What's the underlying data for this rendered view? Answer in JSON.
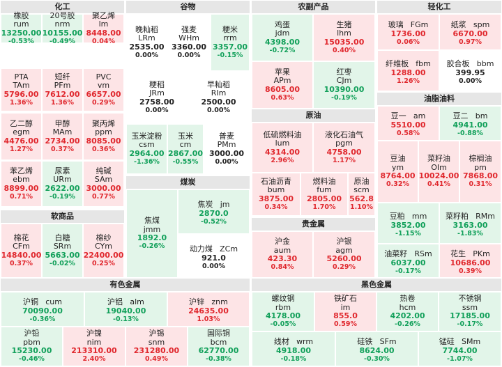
{
  "sections": [
    {
      "key": "chem",
      "title": "化工",
      "cells": [
        {
          "name": "橡胶",
          "code": "rum",
          "price": "13250.00",
          "pct": "-0.53%",
          "dir": "down"
        },
        {
          "name": "20号胶",
          "code": "nrm",
          "price": "10155.00",
          "pct": "-0.49%",
          "dir": "down"
        },
        {
          "name": "聚乙烯",
          "code": "lm",
          "price": "8448.00",
          "pct": "0.04%",
          "dir": "up"
        },
        {
          "name": "PTA",
          "code": "TAm",
          "price": "5796.00",
          "pct": "1.36%",
          "dir": "up"
        },
        {
          "name": "短纤",
          "code": "PFm",
          "price": "7612.00",
          "pct": "1.36%",
          "dir": "up"
        },
        {
          "name": "PVC",
          "code": "vm",
          "price": "6657.00",
          "pct": "0.29%",
          "dir": "up"
        },
        {
          "name": "乙二醇",
          "code": "egm",
          "price": "4476.00",
          "pct": "1.27%",
          "dir": "up"
        },
        {
          "name": "甲醇",
          "code": "MAm",
          "price": "2734.00",
          "pct": "0.37%",
          "dir": "up"
        },
        {
          "name": "聚丙烯",
          "code": "ppm",
          "price": "8085.00",
          "pct": "0.36%",
          "dir": "up"
        },
        {
          "name": "苯乙烯",
          "code": "ebm",
          "price": "8899.00",
          "pct": "0.71%",
          "dir": "up"
        },
        {
          "name": "尿素",
          "code": "URm",
          "price": "2622.00",
          "pct": "-0.19%",
          "dir": "down"
        },
        {
          "name": "纯碱",
          "code": "SAm",
          "price": "3000.00",
          "pct": "0.77%",
          "dir": "up"
        }
      ]
    },
    {
      "key": "soft",
      "title": "软商品",
      "cells": [
        {
          "name": "棉花",
          "code": "CFm",
          "price": "14840.00",
          "pct": "0.37%",
          "dir": "up"
        },
        {
          "name": "白糖",
          "code": "SRm",
          "price": "5663.00",
          "pct": "-0.02%",
          "dir": "down"
        },
        {
          "name": "棉纱",
          "code": "CYm",
          "price": "22400.00",
          "pct": "0.25%",
          "dir": "up"
        }
      ]
    },
    {
      "key": "grain",
      "title": "谷物",
      "cells": [
        {
          "name": "晚籼稻",
          "code": "LRm",
          "price": "2535.00",
          "pct": "0.00%",
          "dir": "flat"
        },
        {
          "name": "强麦",
          "code": "WHm",
          "price": "3360.00",
          "pct": "0.00%",
          "dir": "flat"
        },
        {
          "name": "粳米",
          "code": "rrm",
          "price": "3357.00",
          "pct": "-0.15%",
          "dir": "down"
        },
        {
          "name": "粳稻",
          "code": "JRm",
          "price": "2758.00",
          "pct": "0.00%",
          "dir": "flat"
        },
        {
          "name": "早籼稻",
          "code": "RIm",
          "price": "2500.00",
          "pct": "0.00%",
          "dir": "flat"
        },
        {
          "name": "玉米淀粉",
          "code": "csm",
          "price": "2964.00",
          "pct": "-1.36%",
          "dir": "down"
        },
        {
          "name": "玉米",
          "code": "cm",
          "price": "2867.00",
          "pct": "-0.55%",
          "dir": "down"
        },
        {
          "name": "普麦",
          "code": "PMm",
          "price": "3000.00",
          "pct": "0.00%",
          "dir": "flat"
        }
      ]
    },
    {
      "key": "coal",
      "title": "煤炭",
      "cells": [
        {
          "name": "焦煤",
          "code": "jmm",
          "price": "1892.0",
          "pct": "-0.26%",
          "dir": "down"
        },
        {
          "name": "焦炭",
          "code": "jm",
          "price": "2870.0",
          "pct": "-0.52%",
          "dir": "down"
        },
        {
          "name": "动力煤",
          "code": "ZCm",
          "price": "921.0",
          "pct": "0.00%",
          "dir": "flat"
        }
      ]
    },
    {
      "key": "agri",
      "title": "农副产品",
      "cells": [
        {
          "name": "鸡蛋",
          "code": "jdm",
          "price": "4398.00",
          "pct": "-0.72%",
          "dir": "down"
        },
        {
          "name": "生猪",
          "code": "lhm",
          "price": "15035.00",
          "pct": "0.40%",
          "dir": "up"
        },
        {
          "name": "苹果",
          "code": "APm",
          "price": "8605.00",
          "pct": "0.63%",
          "dir": "up"
        },
        {
          "name": "红枣",
          "code": "CJm",
          "price": "10390.00",
          "pct": "-0.19%",
          "dir": "down"
        }
      ]
    },
    {
      "key": "oil",
      "title": "原油",
      "cells": [
        {
          "name": "低硫燃料油",
          "code": "lum",
          "price": "4314.00",
          "pct": "2.96%",
          "dir": "up"
        },
        {
          "name": "液化石油气",
          "code": "pgm",
          "price": "4758.00",
          "pct": "1.17%",
          "dir": "up"
        },
        {
          "name": "石油沥青",
          "code": "bum",
          "price": "3875.00",
          "pct": "0.34%",
          "dir": "up"
        },
        {
          "name": "燃料油",
          "code": "fum",
          "price": "2805.00",
          "pct": "1.70%",
          "dir": "up"
        },
        {
          "name": "原油",
          "code": "scm",
          "price": "562.8",
          "pct": "1.10%",
          "dir": "up"
        }
      ]
    },
    {
      "key": "precious",
      "title": "贵金属",
      "cells": [
        {
          "name": "沪金",
          "code": "aum",
          "price": "423.30",
          "pct": "0.84%",
          "dir": "up"
        },
        {
          "name": "沪银",
          "code": "agm",
          "price": "5260.00",
          "pct": "0.29%",
          "dir": "up"
        }
      ]
    },
    {
      "key": "light",
      "title": "轻化工",
      "cells": [
        {
          "name": "玻璃",
          "code": "FGm",
          "price": "1736.00",
          "pct": "0.06%",
          "dir": "up"
        },
        {
          "name": "纸浆",
          "code": "spm",
          "price": "6670.00",
          "pct": "0.97%",
          "dir": "up"
        },
        {
          "name": "纤维板",
          "code": "fbm",
          "price": "1288.00",
          "pct": "1.26%",
          "dir": "up"
        },
        {
          "name": "胶合板",
          "code": "bbm",
          "price": "399.95",
          "pct": "0.00%",
          "dir": "flat"
        }
      ]
    },
    {
      "key": "oilseed",
      "title": "油脂油料",
      "cells": [
        {
          "name": "豆一",
          "code": "am",
          "price": "5510.00",
          "pct": "0.58%",
          "dir": "up"
        },
        {
          "name": "豆二",
          "code": "bm",
          "price": "4941.00",
          "pct": "-0.88%",
          "dir": "down"
        },
        {
          "name": "豆油",
          "code": "ym",
          "price": "8764.00",
          "pct": "0.32%",
          "dir": "up"
        },
        {
          "name": "菜籽油",
          "code": "OIm",
          "price": "10024.00",
          "pct": "0.41%",
          "dir": "up"
        },
        {
          "name": "棕榈油",
          "code": "pm",
          "price": "7868.00",
          "pct": "0.31%",
          "dir": "up"
        },
        {
          "name": "豆粕",
          "code": "mm",
          "price": "3852.00",
          "pct": "-1.15%",
          "dir": "down"
        },
        {
          "name": "菜籽粕",
          "code": "RMm",
          "price": "3163.00",
          "pct": "-1.83%",
          "dir": "down"
        },
        {
          "name": "油菜籽",
          "code": "RSm",
          "price": "6037.00",
          "pct": "-0.17%",
          "dir": "down"
        },
        {
          "name": "花生",
          "code": "PKm",
          "price": "10686.00",
          "pct": "0.39%",
          "dir": "up"
        }
      ]
    },
    {
      "key": "nonferrous",
      "title": "有色金属",
      "cells": [
        {
          "name": "沪铜",
          "code": "cum",
          "price": "70090.00",
          "pct": "-0.36%",
          "dir": "down"
        },
        {
          "name": "沪铝",
          "code": "alm",
          "price": "19040.00",
          "pct": "-0.13%",
          "dir": "down"
        },
        {
          "name": "沪锌",
          "code": "znm",
          "price": "24635.00",
          "pct": "1.03%",
          "dir": "up"
        },
        {
          "name": "沪铅",
          "code": "pbm",
          "price": "15230.00",
          "pct": "-0.46%",
          "dir": "down"
        },
        {
          "name": "沪镍",
          "code": "nim",
          "price": "213310.00",
          "pct": "2.40%",
          "dir": "up"
        },
        {
          "name": "沪锡",
          "code": "snm",
          "price": "231280.00",
          "pct": "0.49%",
          "dir": "up"
        },
        {
          "name": "国际铜",
          "code": "bcm",
          "price": "62770.00",
          "pct": "-0.38%",
          "dir": "down"
        }
      ]
    },
    {
      "key": "ferrous",
      "title": "黑色金属",
      "cells": [
        {
          "name": "螺纹钢",
          "code": "rbm",
          "price": "4178.00",
          "pct": "-0.05%",
          "dir": "down"
        },
        {
          "name": "铁矿石",
          "code": "im",
          "price": "855.0",
          "pct": "0.59%",
          "dir": "up"
        },
        {
          "name": "热卷",
          "code": "hcm",
          "price": "4202.00",
          "pct": "-0.26%",
          "dir": "down"
        },
        {
          "name": "不锈钢",
          "code": "ssm",
          "price": "17185.00",
          "pct": "-0.17%",
          "dir": "down"
        },
        {
          "name": "线材",
          "code": "wrm",
          "price": "4918.00",
          "pct": "-0.18%",
          "dir": "down"
        },
        {
          "name": "硅铁",
          "code": "SFm",
          "price": "8624.00",
          "pct": "-0.30%",
          "dir": "down"
        },
        {
          "name": "锰硅",
          "code": "SMm",
          "price": "7744.00",
          "pct": "-1.07%",
          "dir": "down"
        }
      ]
    }
  ]
}
